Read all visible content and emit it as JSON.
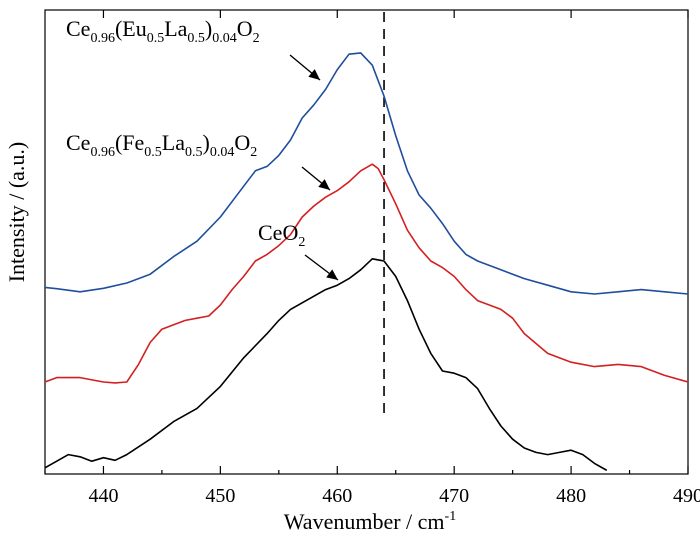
{
  "chart_data": {
    "type": "line",
    "xlabel": "Wavenumber / cm",
    "xlabel_sup": "-1",
    "ylabel": "Intensity / (a.u.)",
    "xlim": [
      435,
      490
    ],
    "ylim": [
      0,
      1
    ],
    "x_ticks": [
      440,
      450,
      460,
      470,
      480,
      490
    ],
    "y_ticks_labeled": false,
    "grid": false,
    "legend": "none",
    "reference_line_x": 464,
    "series": [
      {
        "label_parts": [
          [
            "Ce",
            ""
          ],
          [
            "0.96",
            "sub"
          ],
          [
            "(Eu",
            ""
          ],
          [
            "0.5",
            "sub"
          ],
          [
            "La",
            ""
          ],
          [
            "0.5",
            "sub"
          ],
          [
            ")",
            ""
          ],
          [
            "0.04",
            "sub"
          ],
          [
            "O",
            ""
          ],
          [
            "2",
            "sub"
          ]
        ],
        "color": "#1f4e9c",
        "points": [
          [
            435,
            0.415
          ],
          [
            436,
            0.412
          ],
          [
            438,
            0.405
          ],
          [
            440,
            0.413
          ],
          [
            442,
            0.425
          ],
          [
            444,
            0.445
          ],
          [
            446,
            0.485
          ],
          [
            448,
            0.52
          ],
          [
            450,
            0.575
          ],
          [
            452,
            0.645
          ],
          [
            453,
            0.68
          ],
          [
            454,
            0.69
          ],
          [
            455,
            0.715
          ],
          [
            456,
            0.75
          ],
          [
            457,
            0.8
          ],
          [
            458,
            0.83
          ],
          [
            459,
            0.865
          ],
          [
            460,
            0.91
          ],
          [
            461,
            0.945
          ],
          [
            462,
            0.948
          ],
          [
            463,
            0.92
          ],
          [
            464,
            0.85
          ],
          [
            465,
            0.76
          ],
          [
            466,
            0.68
          ],
          [
            467,
            0.625
          ],
          [
            468,
            0.595
          ],
          [
            469,
            0.56
          ],
          [
            470,
            0.52
          ],
          [
            471,
            0.49
          ],
          [
            472,
            0.475
          ],
          [
            474,
            0.455
          ],
          [
            476,
            0.435
          ],
          [
            478,
            0.42
          ],
          [
            480,
            0.405
          ],
          [
            482,
            0.4
          ],
          [
            484,
            0.405
          ],
          [
            486,
            0.41
          ],
          [
            488,
            0.405
          ],
          [
            490,
            0.4
          ]
        ]
      },
      {
        "label_parts": [
          [
            "Ce",
            ""
          ],
          [
            "0.96",
            "sub"
          ],
          [
            "(Fe",
            ""
          ],
          [
            "0.5",
            "sub"
          ],
          [
            "La",
            ""
          ],
          [
            "0.5",
            "sub"
          ],
          [
            ")",
            ""
          ],
          [
            "0.04",
            "sub"
          ],
          [
            "O",
            ""
          ],
          [
            "2",
            "sub"
          ]
        ],
        "color": "#d42020",
        "points": [
          [
            435,
            0.2
          ],
          [
            436,
            0.21
          ],
          [
            438,
            0.21
          ],
          [
            440,
            0.2
          ],
          [
            441,
            0.198
          ],
          [
            442,
            0.2
          ],
          [
            443,
            0.24
          ],
          [
            444,
            0.29
          ],
          [
            445,
            0.32
          ],
          [
            446,
            0.33
          ],
          [
            447,
            0.34
          ],
          [
            448,
            0.345
          ],
          [
            449,
            0.35
          ],
          [
            450,
            0.375
          ],
          [
            451,
            0.41
          ],
          [
            452,
            0.44
          ],
          [
            453,
            0.475
          ],
          [
            454,
            0.49
          ],
          [
            455,
            0.51
          ],
          [
            456,
            0.535
          ],
          [
            457,
            0.575
          ],
          [
            458,
            0.6
          ],
          [
            459,
            0.62
          ],
          [
            460,
            0.635
          ],
          [
            461,
            0.655
          ],
          [
            462,
            0.68
          ],
          [
            463,
            0.695
          ],
          [
            463.5,
            0.685
          ],
          [
            464,
            0.66
          ],
          [
            465,
            0.605
          ],
          [
            466,
            0.545
          ],
          [
            467,
            0.505
          ],
          [
            468,
            0.475
          ],
          [
            469,
            0.46
          ],
          [
            470,
            0.44
          ],
          [
            471,
            0.41
          ],
          [
            472,
            0.385
          ],
          [
            473,
            0.375
          ],
          [
            474,
            0.365
          ],
          [
            475,
            0.345
          ],
          [
            476,
            0.31
          ],
          [
            478,
            0.265
          ],
          [
            480,
            0.245
          ],
          [
            482,
            0.235
          ],
          [
            484,
            0.24
          ],
          [
            486,
            0.235
          ],
          [
            488,
            0.215
          ],
          [
            490,
            0.2
          ]
        ]
      },
      {
        "label_parts": [
          [
            "CeO",
            ""
          ],
          [
            "2",
            "sub"
          ]
        ],
        "color": "#000000",
        "points": [
          [
            435,
            0.005
          ],
          [
            436,
            0.02
          ],
          [
            437,
            0.035
          ],
          [
            438,
            0.03
          ],
          [
            439,
            0.02
          ],
          [
            440,
            0.028
          ],
          [
            441,
            0.022
          ],
          [
            442,
            0.035
          ],
          [
            444,
            0.07
          ],
          [
            446,
            0.11
          ],
          [
            448,
            0.14
          ],
          [
            450,
            0.19
          ],
          [
            452,
            0.255
          ],
          [
            454,
            0.31
          ],
          [
            455,
            0.34
          ],
          [
            456,
            0.365
          ],
          [
            457,
            0.38
          ],
          [
            458,
            0.395
          ],
          [
            459,
            0.41
          ],
          [
            460,
            0.42
          ],
          [
            461,
            0.435
          ],
          [
            462,
            0.455
          ],
          [
            463,
            0.48
          ],
          [
            464,
            0.475
          ],
          [
            465,
            0.44
          ],
          [
            466,
            0.385
          ],
          [
            467,
            0.32
          ],
          [
            468,
            0.265
          ],
          [
            469,
            0.225
          ],
          [
            470,
            0.22
          ],
          [
            471,
            0.21
          ],
          [
            472,
            0.185
          ],
          [
            473,
            0.14
          ],
          [
            474,
            0.1
          ],
          [
            475,
            0.07
          ],
          [
            476,
            0.05
          ],
          [
            477,
            0.04
          ],
          [
            478,
            0.035
          ],
          [
            479,
            0.04
          ],
          [
            480,
            0.045
          ],
          [
            481,
            0.035
          ],
          [
            482,
            0.015
          ],
          [
            483,
            0.0
          ]
        ]
      }
    ]
  }
}
